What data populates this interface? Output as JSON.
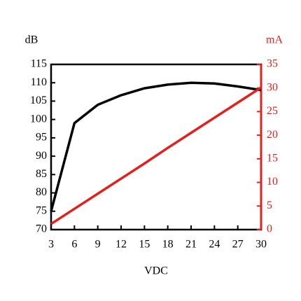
{
  "chart_data": {
    "type": "line",
    "x_label": "VDC",
    "y_label": "dB",
    "y2_label": "mA",
    "x": [
      3,
      6,
      9,
      12,
      15,
      18,
      21,
      24,
      27,
      30
    ],
    "xlim": [
      3,
      30
    ],
    "xticks": [
      3,
      6,
      9,
      12,
      15,
      18,
      21,
      24,
      27,
      30
    ],
    "ylim": [
      70,
      115
    ],
    "yticks": [
      70,
      75,
      80,
      85,
      90,
      95,
      100,
      105,
      110,
      115
    ],
    "y2lim": [
      0,
      35
    ],
    "y2ticks": [
      0,
      5,
      10,
      15,
      20,
      25,
      30,
      35
    ],
    "series": [
      {
        "color": "#000000",
        "values": [
          75,
          99,
          104,
          106.6,
          108.5,
          109.5,
          110,
          109.8,
          109,
          108
        ]
      },
      {
        "color": "#e3201b",
        "axis": "y2",
        "values": [
          1.2,
          4.4,
          7.6,
          10.8,
          14,
          17.3,
          20.5,
          23.7,
          26.9,
          30.1
        ]
      }
    ]
  }
}
